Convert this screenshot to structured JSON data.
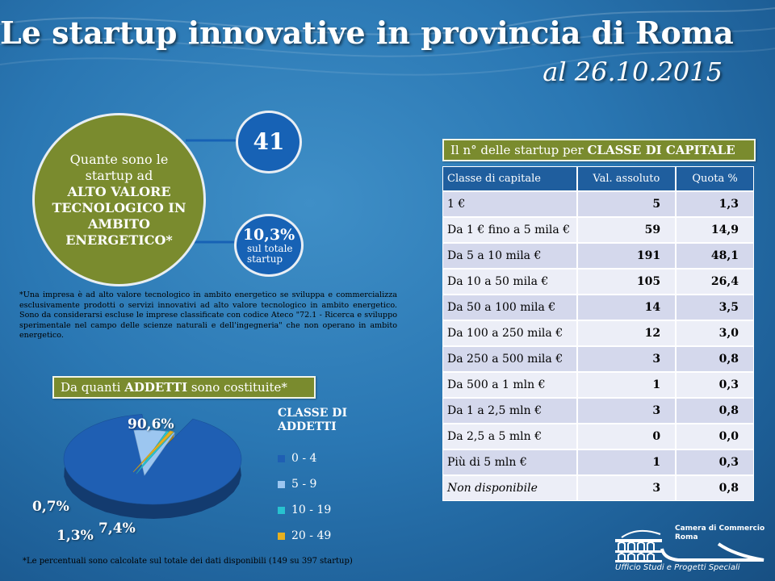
{
  "title": "Le startup innovative in provincia di Roma",
  "subtitle": "al 26.10.2015",
  "question": {
    "prefix": "Quante sono le startup ad",
    "bold": "ALTO VALORE TECNOLOGICO IN AMBITO ENERGETICO*"
  },
  "count_bubble": "41",
  "percent_bubble": {
    "value": "10,3%",
    "caption": "sul totale startup"
  },
  "note": "*Una impresa è ad alto valore tecnologico in ambito energetico se sviluppa e commercializza esclusivamente prodotti o servizi innovativi ad alto valore tecnologico in ambito energetico. Sono da considerarsi escluse le imprese classificate con codice Ateco \"72.1 - Ricerca e sviluppo sperimentale nel campo delle scienze naturali e dell'ingegneria\" che non operano in ambito energetico.",
  "addetti_header": {
    "prefix": "Da quanti ",
    "bold": "ADDETTI",
    "suffix": " sono costituite*"
  },
  "capital_header": {
    "prefix": "Il n° delle startup per ",
    "bold": "CLASSE DI CAPITALE"
  },
  "capital_table": {
    "headers": [
      "Classe di capitale",
      "Val. assoluto",
      "Quota %"
    ],
    "rows": [
      [
        "1 €",
        "5",
        "1,3"
      ],
      [
        "Da 1 € fino a 5 mila €",
        "59",
        "14,9"
      ],
      [
        "Da 5 a 10 mila €",
        "191",
        "48,1"
      ],
      [
        "Da 10 a 50 mila €",
        "105",
        "26,4"
      ],
      [
        "Da 50 a 100 mila €",
        "14",
        "3,5"
      ],
      [
        "Da 100 a 250 mila €",
        "12",
        "3,0"
      ],
      [
        "Da 250 a 500 mila €",
        "3",
        "0,8"
      ],
      [
        "Da 500 a 1 mln €",
        "1",
        "0,3"
      ],
      [
        "Da 1 a 2,5 mln €",
        "3",
        "0,8"
      ],
      [
        "Da 2,5 a 5 mln €",
        "0",
        "0,0"
      ],
      [
        "Più di 5 mln €",
        "1",
        "0,3"
      ],
      [
        "Non disponibile",
        "3",
        "0,8"
      ]
    ]
  },
  "legend_title": "CLASSE DI ADDETTI",
  "footnote": "*Le percentuali sono calcolate sul totale dei dati disponibili (149 su 397 startup)",
  "logo": {
    "name_line1": "Camera di Commercio",
    "name_line2": "Roma",
    "sub": "Ufficio Studi e Progetti Speciali"
  },
  "colors": {
    "background": "#2a77b3",
    "green": "#7a8b2e",
    "bubble": "#1762b5",
    "table_header": "#1f5e9e",
    "row_odd": "#d4d8ec",
    "row_even": "#eceef7"
  },
  "chart_data": {
    "type": "pie",
    "title": "",
    "categories": [
      "0 - 4",
      "5 - 9",
      "10 - 19",
      "20 - 49"
    ],
    "values": [
      90.6,
      7.4,
      1.3,
      0.7
    ],
    "value_labels": [
      "90,6%",
      "7,4%",
      "1,3%",
      "0,7%"
    ],
    "colors": [
      "#1f5fb3",
      "#9cc6f0",
      "#28c2cf",
      "#e6b020"
    ],
    "legend_placement": "right",
    "style": "3d-exploded"
  }
}
